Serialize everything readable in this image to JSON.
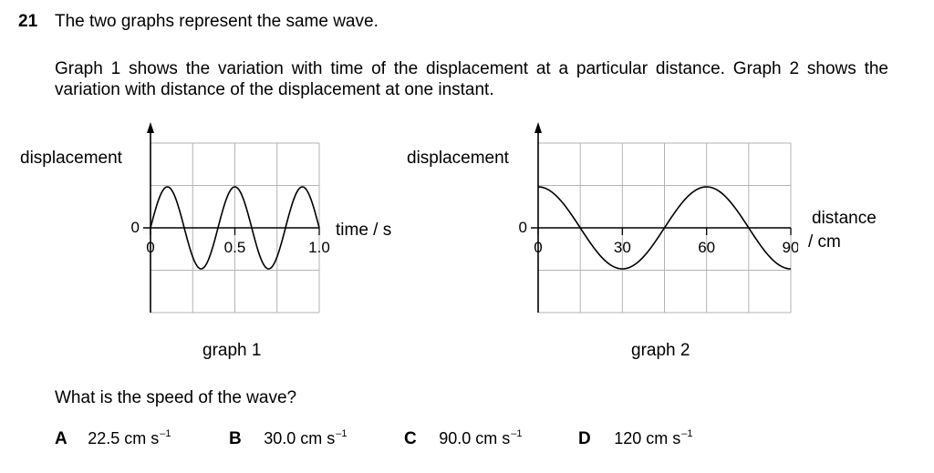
{
  "question": {
    "number": "21",
    "stem": "The two graphs represent the same wave.",
    "intro": "Graph 1 shows the variation with time of the displacement at a particular distance. Graph 2 shows the variation with distance of the displacement at one instant.",
    "ask": "What is the speed of the wave?"
  },
  "graph1": {
    "ylabel": "displacement",
    "xlabel": "time / s",
    "zero_label": "0",
    "x_ticks": [
      "0",
      "0.5",
      "1.0"
    ],
    "caption": "graph 1"
  },
  "graph2": {
    "ylabel": "displacement",
    "xlabel_line1": "distance",
    "xlabel_line2": "/ cm",
    "zero_label": "0",
    "x_ticks": [
      "0",
      "30",
      "60",
      "90"
    ],
    "caption": "graph 2"
  },
  "options": [
    {
      "letter": "A",
      "value": "22.5 cm s",
      "exp": "–1"
    },
    {
      "letter": "B",
      "value": "30.0 cm s",
      "exp": "–1"
    },
    {
      "letter": "C",
      "value": "90.0 cm s",
      "exp": "–1"
    },
    {
      "letter": "D",
      "value": "120 cm s",
      "exp": "–1"
    }
  ],
  "chart_data": [
    {
      "type": "line",
      "title": "graph 1",
      "xlabel": "time / s",
      "ylabel": "displacement",
      "xlim": [
        0,
        1.0
      ],
      "x_ticks": [
        0,
        0.5,
        1.0
      ],
      "grid": true,
      "series": [
        {
          "x": [
            0,
            0.1,
            0.2,
            0.3,
            0.4,
            0.5,
            0.6,
            0.7,
            0.8,
            0.9,
            1.0
          ],
          "y": [
            0,
            1,
            0,
            -1,
            0,
            1,
            0,
            -1,
            0,
            1,
            0
          ]
        }
      ]
    },
    {
      "type": "line",
      "title": "graph 2",
      "xlabel": "distance / cm",
      "ylabel": "displacement",
      "xlim": [
        0,
        90
      ],
      "x_ticks": [
        0,
        30,
        60,
        90
      ],
      "grid": true,
      "series": [
        {
          "x": [
            0,
            15,
            30,
            45,
            60,
            75,
            90
          ],
          "y": [
            1,
            0,
            -1,
            0,
            1,
            0,
            -1
          ]
        }
      ]
    }
  ]
}
